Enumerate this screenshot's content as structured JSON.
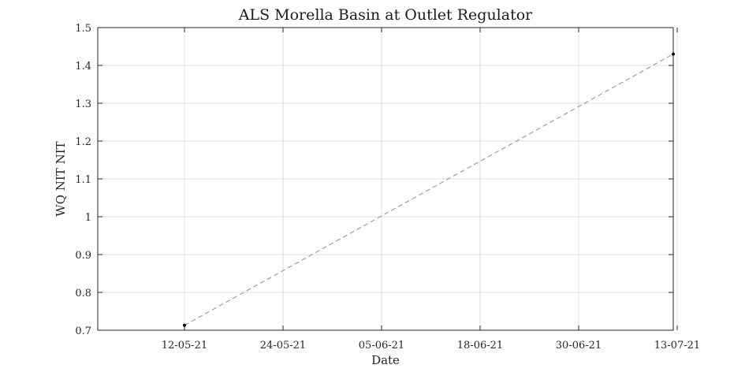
{
  "chart_data": {
    "type": "line",
    "title": "ALS Morella Basin at Outlet Regulator",
    "xlabel": "Date",
    "ylabel": "WQ NIT NIT",
    "x_ticks": [
      "12-05-21",
      "24-05-21",
      "05-06-21",
      "18-06-21",
      "30-06-21",
      "13-07-21"
    ],
    "y_ticks": [
      "0.7",
      "0.8",
      "0.9",
      "1",
      "1.1",
      "1.2",
      "1.3",
      "1.4",
      "1.5"
    ],
    "ylim": [
      0.7,
      1.5
    ],
    "xlim": [
      "2021-05-01",
      "2021-07-13"
    ],
    "grid": true,
    "series": [
      {
        "x": [
          "2021-05-12",
          "2021-07-13"
        ],
        "y": [
          0.713,
          1.43
        ],
        "line_style": "dashed",
        "line_color": "#8c8c8c",
        "marker_color": "#000000"
      }
    ]
  }
}
